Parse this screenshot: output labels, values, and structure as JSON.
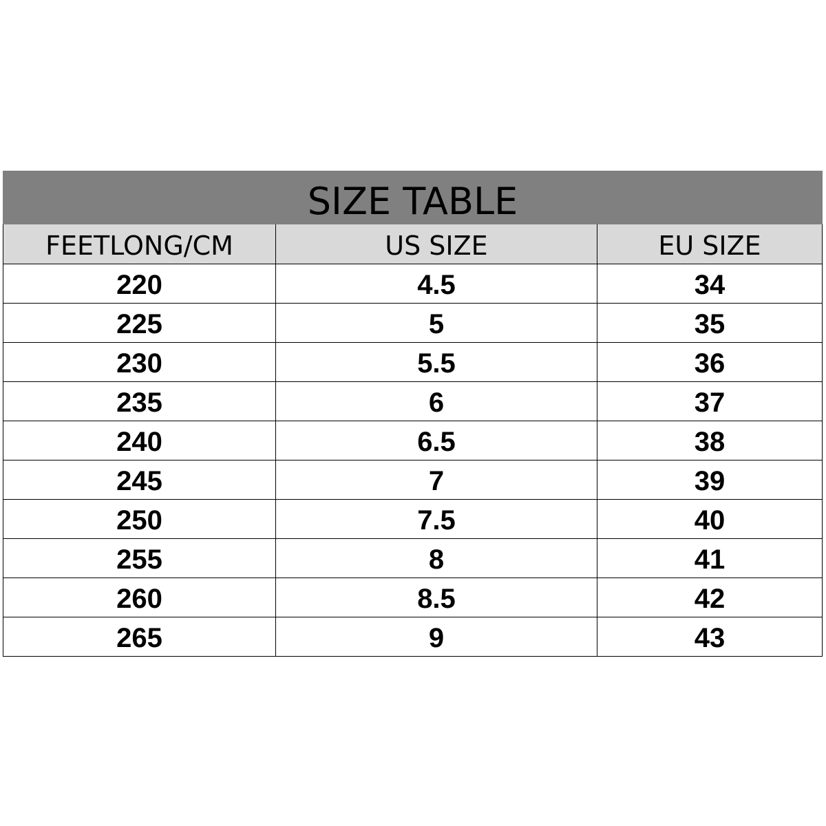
{
  "title": "SIZE TABLE",
  "colors": {
    "title_bg": "#808080",
    "header_bg": "#d9d9d9"
  },
  "columns": [
    "FEETLONG/CM",
    "US SIZE",
    "EU SIZE"
  ],
  "rows": [
    [
      "220",
      "4.5",
      "34"
    ],
    [
      "225",
      "5",
      "35"
    ],
    [
      "230",
      "5.5",
      "36"
    ],
    [
      "235",
      "6",
      "37"
    ],
    [
      "240",
      "6.5",
      "38"
    ],
    [
      "245",
      "7",
      "39"
    ],
    [
      "250",
      "7.5",
      "40"
    ],
    [
      "255",
      "8",
      "41"
    ],
    [
      "260",
      "8.5",
      "42"
    ],
    [
      "265",
      "9",
      "43"
    ]
  ]
}
